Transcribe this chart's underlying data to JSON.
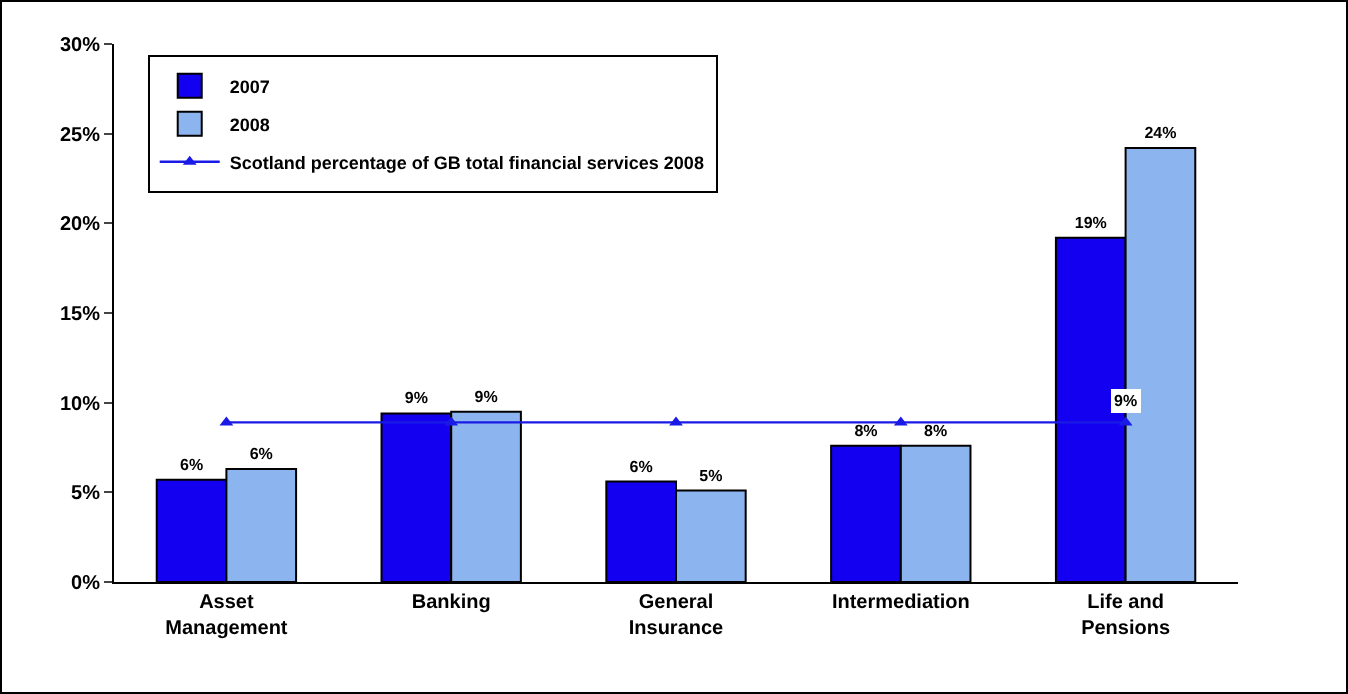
{
  "chart_data": {
    "type": "bar",
    "categories": [
      "Asset Management",
      "Banking",
      "General Insurance",
      "Intermediation",
      "Life and Pensions"
    ],
    "series": [
      {
        "name": "2007",
        "color": "#1400f0",
        "values": [
          5.7,
          9.4,
          5.6,
          7.6,
          19.2
        ],
        "value_labels": [
          "6%",
          "9%",
          "6%",
          "8%",
          "19%"
        ]
      },
      {
        "name": "2008",
        "color": "#8cb4ee",
        "values": [
          6.3,
          9.5,
          5.1,
          7.6,
          24.2
        ],
        "value_labels": [
          "6%",
          "9%",
          "5%",
          "8%",
          "24%"
        ]
      },
      {
        "name": "Scotland percentage of GB total financial services 2008",
        "type": "line",
        "color": "#1a1ae6",
        "marker": "triangle",
        "values": [
          8.9,
          8.9,
          8.9,
          8.9,
          8.9
        ],
        "value_labels": [
          null,
          null,
          null,
          null,
          "9%"
        ]
      }
    ],
    "ylim": [
      0,
      30
    ],
    "yticks": [
      {
        "value": 0,
        "label": "0%"
      },
      {
        "value": 5,
        "label": "5%"
      },
      {
        "value": 10,
        "label": "10%"
      },
      {
        "value": 15,
        "label": "15%"
      },
      {
        "value": 20,
        "label": "20%"
      },
      {
        "value": 25,
        "label": "25%"
      },
      {
        "value": 30,
        "label": "30%"
      }
    ],
    "grid": false,
    "legend": "top left"
  }
}
